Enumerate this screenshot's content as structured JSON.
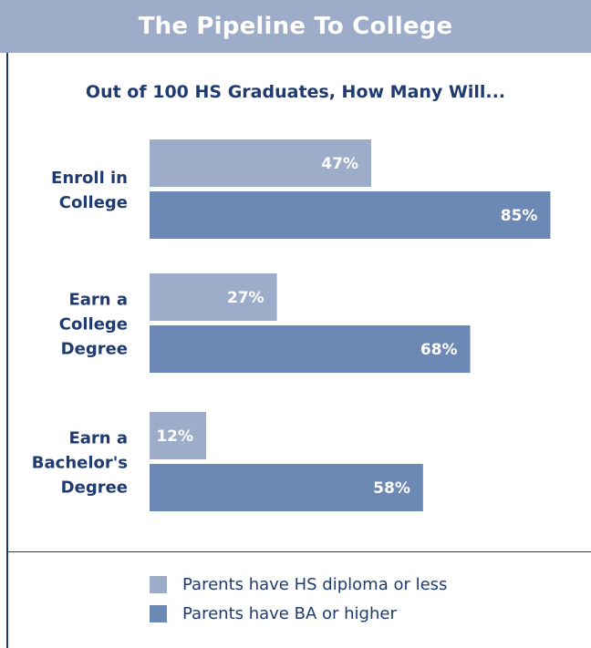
{
  "header": {
    "title": "The Pipeline To College"
  },
  "chart_data": {
    "type": "bar",
    "orientation": "horizontal",
    "title": "The Pipeline To College",
    "subtitle": "Out of 100 HS Graduates, How Many Will...",
    "categories": [
      [
        "Enroll in",
        "College"
      ],
      [
        "Earn a",
        "College",
        "Degree"
      ],
      [
        "Earn a",
        "Bachelor's",
        "Degree"
      ]
    ],
    "series": [
      {
        "name": "Parents have HS diploma or less",
        "values": [
          47,
          27,
          12
        ],
        "labels": [
          "47%",
          "27%",
          "12%"
        ],
        "color": "#9dacc9"
      },
      {
        "name": "Parents have BA or higher",
        "values": [
          85,
          68,
          58
        ],
        "labels": [
          "85%",
          "68%",
          "58%"
        ],
        "color": "#6b89b4"
      }
    ],
    "unit": "%",
    "grid": false,
    "legend_position": "bottom"
  },
  "legend": {
    "items": [
      {
        "label": "Parents have HS diploma or less",
        "color": "#9dacc9"
      },
      {
        "label": "Parents have BA or higher",
        "color": "#6b89b4"
      }
    ]
  },
  "colors": {
    "header": "#9dacc9",
    "rule": "#1c3a6b",
    "text": "#1f3b70"
  }
}
